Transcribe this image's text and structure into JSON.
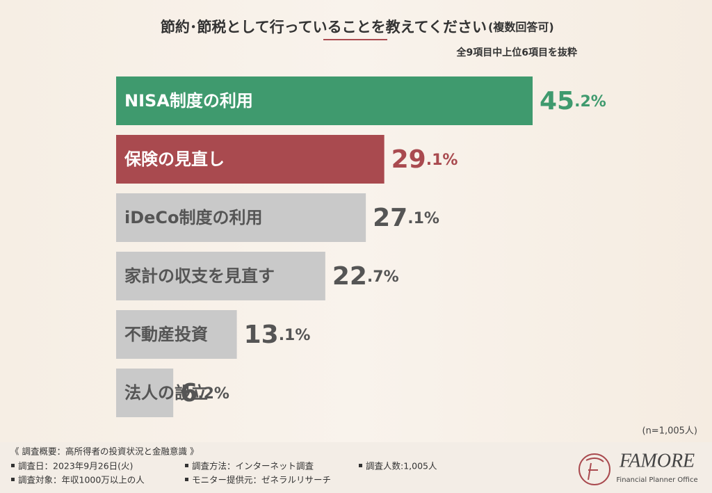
{
  "chart_data": {
    "type": "bar",
    "orientation": "horizontal",
    "title": "節約･節税として行っていることを教えてください",
    "title_note": "(複数回答可)",
    "subtitle": "全9項目中上位6項目を抜粋",
    "categories": [
      "NISA制度の利用",
      "保険の見直し",
      "iDeCo制度の利用",
      "家計の収支を見直す",
      "不動産投資",
      "法人の設立"
    ],
    "values": [
      45.2,
      29.1,
      27.1,
      22.7,
      13.1,
      6.2
    ],
    "value_labels": [
      "45.2%",
      "29.1%",
      "27.1%",
      "22.7%",
      "13.1%",
      "6.2%"
    ],
    "colors": [
      "#3f9a6e",
      "#a94a4f",
      "#c9c9c9",
      "#c9c9c9",
      "#c9c9c9",
      "#c9c9c9"
    ],
    "category_text_colors": [
      "#ffffff",
      "#ffffff",
      "#555555",
      "#555555",
      "#555555",
      "#555555"
    ],
    "value_label_colors": [
      "#3f9a6e",
      "#a94a4f",
      "#555555",
      "#555555",
      "#555555",
      "#555555"
    ],
    "sample_note": "(n=1,005人)"
  },
  "footer": {
    "heading": "《 調査概要：高所得者の投資状況と金融意識 》",
    "items": [
      "調査日：2023年9月26日(火)",
      "調査対象：年収1000万以上の人",
      "調査方法：インターネット調査",
      "モニター提供元：ゼネラルリサーチ",
      "調査人数:1,005人"
    ]
  },
  "logo": {
    "name": "FAMORE",
    "tagline": "Financial Planner Office"
  }
}
